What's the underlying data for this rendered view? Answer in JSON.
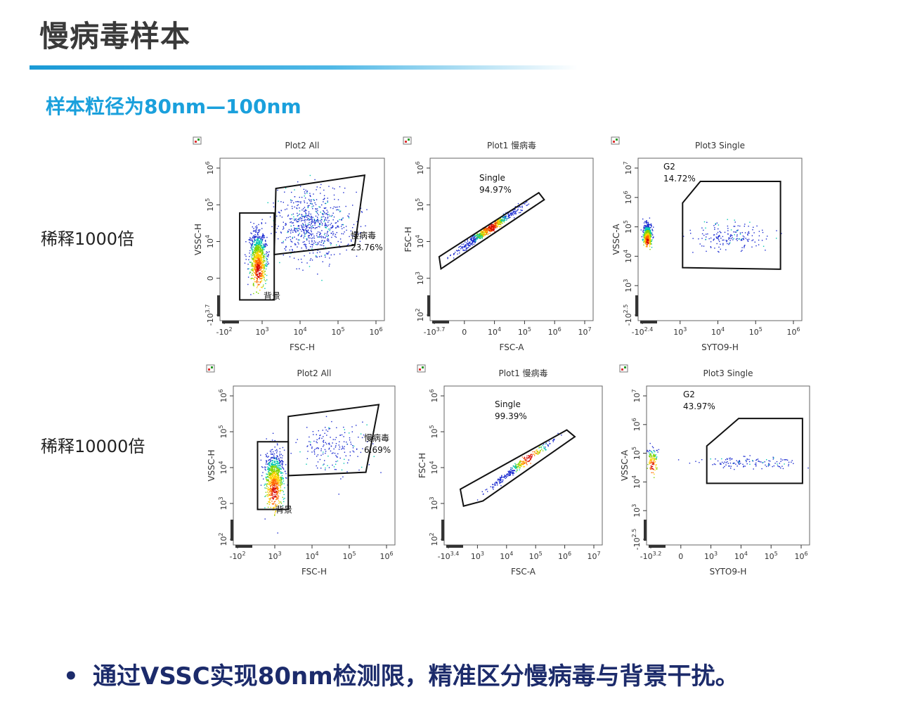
{
  "page": {
    "title": "慢病毒样本",
    "subtitle": "样本粒径为80nm—100nm",
    "row_labels": [
      "稀释1000倍",
      "稀释10000倍"
    ],
    "conclusion_bullet": "•",
    "conclusion": "通过VSSC实现80nm检测限，精准区分慢病毒与背景干扰。",
    "colors": {
      "title": "#3a3a3a",
      "subtitle": "#1aa0dc",
      "conclusion": "#1c2b6b",
      "bar": "#1a9ad6"
    }
  },
  "chart_data": [
    {
      "type": "scatter",
      "title": "Plot2 All",
      "xlabel": "FSC-H",
      "ylabel": "VSSC-H",
      "x_ticks": [
        "-10^2",
        "10^3",
        "10^4",
        "10^5",
        "10^6"
      ],
      "y_ticks": [
        "-10^3.7",
        "0",
        "10^4",
        "10^5",
        "10^6"
      ],
      "x_range_log": [
        1.6,
        6.6
      ],
      "y_range_log": [
        2.3,
        6.6
      ],
      "gates": [
        {
          "name": "慢病毒",
          "percent": "23.76%",
          "polygon": [
            [
              3.3,
              5.8
            ],
            [
              6.0,
              6.15
            ],
            [
              5.7,
              4.3
            ],
            [
              3.25,
              4.05
            ]
          ]
        },
        {
          "name": "背景",
          "percent": "",
          "polygon": [
            [
              2.2,
              5.15
            ],
            [
              3.25,
              5.15
            ],
            [
              3.25,
              2.85
            ],
            [
              2.2,
              2.85
            ]
          ]
        }
      ]
    },
    {
      "type": "scatter",
      "title": "Plot1 慢病毒",
      "xlabel": "FSC-A",
      "ylabel": "FSC-H",
      "x_ticks": [
        "-10^3.7",
        "0",
        "10^4",
        "10^5",
        "10^6",
        "10^7"
      ],
      "y_ticks": [
        "10^2",
        "10^3",
        "10^4",
        "10^5",
        "10^6"
      ],
      "x_range_log": [
        2.8,
        7.3
      ],
      "y_range_log": [
        1.9,
        6.6
      ],
      "gates": [
        {
          "name": "Single",
          "percent": "94.97%",
          "polygon": [
            [
              3.05,
              3.75
            ],
            [
              5.8,
              5.6
            ],
            [
              5.95,
              5.4
            ],
            [
              3.1,
              3.4
            ]
          ]
        }
      ]
    },
    {
      "type": "scatter",
      "title": "Plot3 Single",
      "xlabel": "SYTO9-H",
      "ylabel": "VSSC-A",
      "x_ticks": [
        "-10^2.4",
        "10^3",
        "10^4",
        "10^5",
        "10^6"
      ],
      "y_ticks": [
        "-10^2.5",
        "10^3",
        "10^4",
        "10^5",
        "10^6",
        "10^7"
      ],
      "x_range_log": [
        2.0,
        6.6
      ],
      "y_range_log": [
        2.3,
        7.2
      ],
      "gates": [
        {
          "name": "G2",
          "percent": "14.72%",
          "polygon": [
            [
              3.25,
              5.85
            ],
            [
              3.75,
              6.5
            ],
            [
              6.0,
              6.5
            ],
            [
              6.0,
              3.85
            ],
            [
              3.25,
              3.9
            ]
          ]
        }
      ]
    },
    {
      "type": "scatter",
      "title": "Plot2 All",
      "xlabel": "FSC-H",
      "ylabel": "VSSC-H",
      "x_ticks": [
        "-10^2",
        "10^3",
        "10^4",
        "10^5",
        "10^6"
      ],
      "y_ticks": [
        "10^2",
        "10^3",
        "10^4",
        "10^5",
        "10^6"
      ],
      "x_range_log": [
        1.6,
        6.6
      ],
      "y_range_log": [
        1.9,
        6.6
      ],
      "gates": [
        {
          "name": "慢病毒",
          "percent": "6.69%",
          "polygon": [
            [
              3.3,
              5.7
            ],
            [
              6.1,
              6.05
            ],
            [
              5.7,
              4.05
            ],
            [
              3.3,
              3.95
            ]
          ]
        },
        {
          "name": "背景",
          "percent": "",
          "polygon": [
            [
              2.35,
              4.95
            ],
            [
              3.3,
              4.95
            ],
            [
              3.3,
              2.95
            ],
            [
              2.35,
              2.95
            ]
          ]
        }
      ]
    },
    {
      "type": "scatter",
      "title": "Plot1 慢病毒",
      "xlabel": "FSC-A",
      "ylabel": "FSC-H",
      "x_ticks": [
        "-10^3.4",
        "10^3",
        "10^4",
        "10^5",
        "10^6",
        "10^7"
      ],
      "y_ticks": [
        "10^2",
        "10^3",
        "10^4",
        "10^5",
        "10^6"
      ],
      "x_range_log": [
        2.3,
        7.2
      ],
      "y_range_log": [
        1.9,
        6.6
      ],
      "gates": [
        {
          "name": "Single",
          "percent": "99.39%",
          "polygon": [
            [
              2.8,
              3.55
            ],
            [
              6.1,
              5.3
            ],
            [
              6.35,
              5.1
            ],
            [
              3.5,
              3.2
            ],
            [
              2.9,
              3.05
            ]
          ]
        }
      ]
    },
    {
      "type": "scatter",
      "title": "Plot3 Single",
      "xlabel": "SYTO9-H",
      "ylabel": "VSSC-A",
      "x_ticks": [
        "-10^3.2",
        "0",
        "10^3",
        "10^4",
        "10^5",
        "10^6"
      ],
      "y_ticks": [
        "-10^2.5",
        "10^3",
        "10^4",
        "10^5",
        "10^6",
        "10^7"
      ],
      "x_range_log": [
        2.0,
        6.6
      ],
      "y_range_log": [
        2.3,
        7.2
      ],
      "gates": [
        {
          "name": "G2",
          "percent": "43.97%",
          "polygon": [
            [
              3.7,
              5.35
            ],
            [
              4.6,
              6.2
            ],
            [
              6.4,
              6.2
            ],
            [
              6.4,
              4.2
            ],
            [
              3.7,
              4.2
            ]
          ]
        }
      ]
    }
  ]
}
